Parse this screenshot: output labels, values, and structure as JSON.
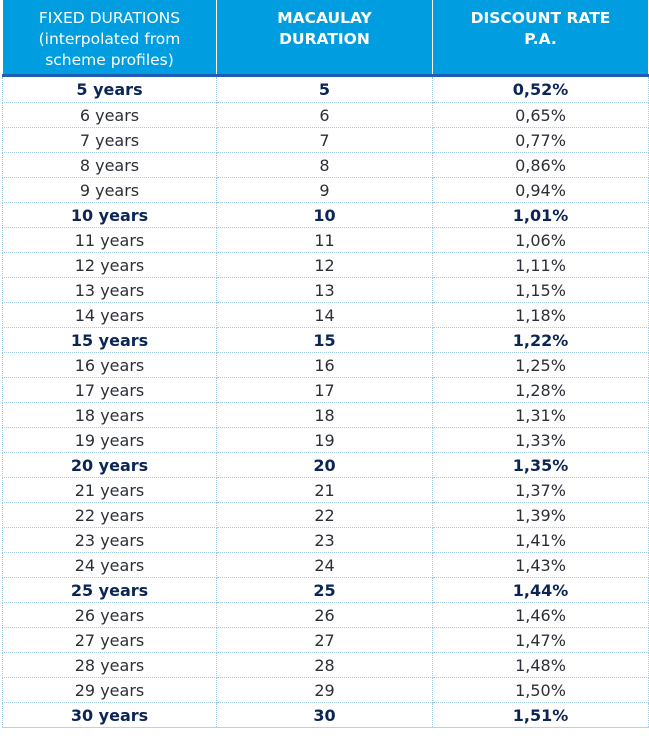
{
  "table": {
    "headers": [
      {
        "lines": [
          "FIXED DURATIONS",
          "(interpolated from",
          "scheme profiles)"
        ],
        "bold": false
      },
      {
        "lines": [
          "MACAULAY",
          "DURATION"
        ],
        "bold": true
      },
      {
        "lines": [
          "DISCOUNT RATE",
          "P.A."
        ],
        "bold": true
      }
    ],
    "rows": [
      {
        "label": "5 years",
        "duration": "5",
        "rate": "0,52%",
        "bold": true
      },
      {
        "label": "6 years",
        "duration": "6",
        "rate": "0,65%",
        "bold": false
      },
      {
        "label": "7 years",
        "duration": "7",
        "rate": "0,77%",
        "bold": false
      },
      {
        "label": "8 years",
        "duration": "8",
        "rate": "0,86%",
        "bold": false
      },
      {
        "label": "9 years",
        "duration": "9",
        "rate": "0,94%",
        "bold": false
      },
      {
        "label": "10 years",
        "duration": "10",
        "rate": "1,01%",
        "bold": true
      },
      {
        "label": "11 years",
        "duration": "11",
        "rate": "1,06%",
        "bold": false
      },
      {
        "label": "12 years",
        "duration": "12",
        "rate": "1,11%",
        "bold": false
      },
      {
        "label": "13 years",
        "duration": "13",
        "rate": "1,15%",
        "bold": false
      },
      {
        "label": "14 years",
        "duration": "14",
        "rate": "1,18%",
        "bold": false
      },
      {
        "label": "15 years",
        "duration": "15",
        "rate": "1,22%",
        "bold": true
      },
      {
        "label": "16 years",
        "duration": "16",
        "rate": "1,25%",
        "bold": false
      },
      {
        "label": "17 years",
        "duration": "17",
        "rate": "1,28%",
        "bold": false
      },
      {
        "label": "18 years",
        "duration": "18",
        "rate": "1,31%",
        "bold": false
      },
      {
        "label": "19 years",
        "duration": "19",
        "rate": "1,33%",
        "bold": false
      },
      {
        "label": "20 years",
        "duration": "20",
        "rate": "1,35%",
        "bold": true
      },
      {
        "label": "21 years",
        "duration": "21",
        "rate": "1,37%",
        "bold": false
      },
      {
        "label": "22 years",
        "duration": "22",
        "rate": "1,39%",
        "bold": false
      },
      {
        "label": "23 years",
        "duration": "23",
        "rate": "1,41%",
        "bold": false
      },
      {
        "label": "24 years",
        "duration": "24",
        "rate": "1,43%",
        "bold": false
      },
      {
        "label": "25 years",
        "duration": "25",
        "rate": "1,44%",
        "bold": true
      },
      {
        "label": "26 years",
        "duration": "26",
        "rate": "1,46%",
        "bold": false
      },
      {
        "label": "27 years",
        "duration": "27",
        "rate": "1,47%",
        "bold": false
      },
      {
        "label": "28 years",
        "duration": "28",
        "rate": "1,48%",
        "bold": false
      },
      {
        "label": "29 years",
        "duration": "29",
        "rate": "1,50%",
        "bold": false
      },
      {
        "label": "30 years",
        "duration": "30",
        "rate": "1,51%",
        "bold": true
      }
    ]
  },
  "colors": {
    "header_bg": "#009ee0",
    "header_text": "#ffffff",
    "header_rule": "#1f5db4",
    "grid": "#9fcbe6",
    "body_text": "#2b2f36",
    "bold_text": "#0b2555"
  }
}
